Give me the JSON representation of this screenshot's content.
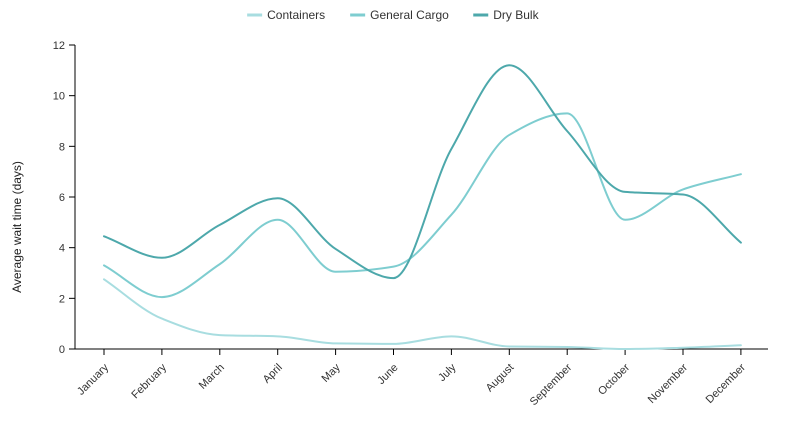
{
  "chart_data": {
    "type": "line",
    "smooth": true,
    "categories": [
      "January",
      "February",
      "March",
      "April",
      "May",
      "June",
      "July",
      "August",
      "September",
      "October",
      "November",
      "December"
    ],
    "series": [
      {
        "name": "Containers",
        "color": "#a8dde0",
        "values": [
          2.75,
          1.2,
          0.55,
          0.5,
          0.22,
          0.2,
          0.5,
          0.1,
          0.08,
          0.0,
          0.05,
          0.15
        ]
      },
      {
        "name": "General Cargo",
        "color": "#7ecdd0",
        "values": [
          3.3,
          2.05,
          3.35,
          5.1,
          3.05,
          3.25,
          5.3,
          8.45,
          9.3,
          5.1,
          6.3,
          6.9
        ]
      },
      {
        "name": "Dry Bulk",
        "color": "#4da8ab",
        "values": [
          4.45,
          3.6,
          4.9,
          5.95,
          3.95,
          2.8,
          7.9,
          11.2,
          8.6,
          6.2,
          6.1,
          4.2
        ]
      }
    ],
    "ylabel": "Average wait time (days)",
    "xlabel": "",
    "ylim": [
      0,
      12
    ],
    "yticks": [
      0,
      2,
      4,
      6,
      8,
      10,
      12
    ],
    "grid": false,
    "legend": "top-center"
  }
}
